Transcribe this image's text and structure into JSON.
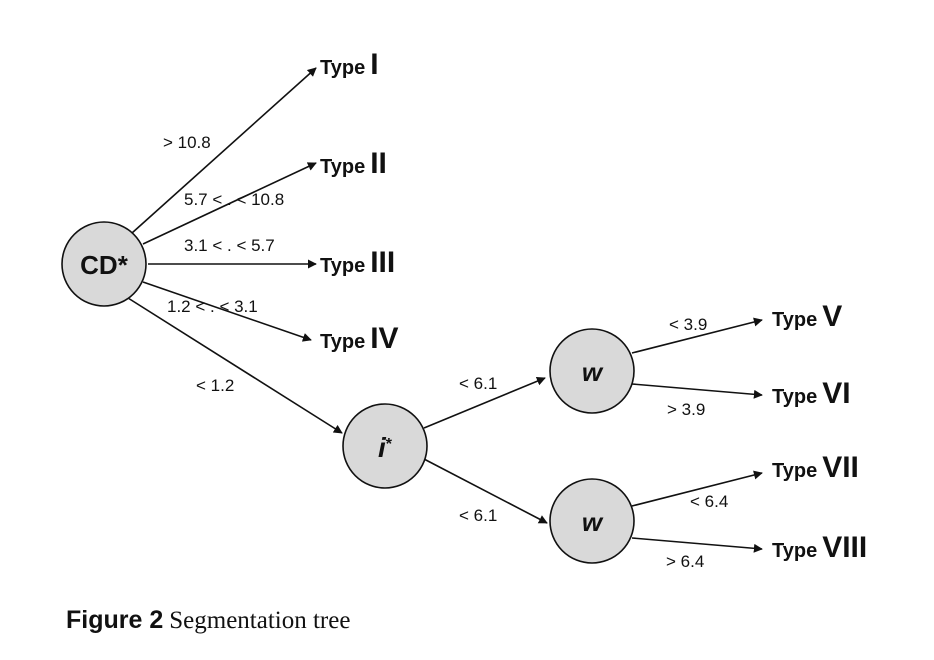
{
  "nodes": {
    "cd": "CD*",
    "i": "i",
    "i_sup": "*",
    "w_upper": "w",
    "w_lower": "w"
  },
  "edges": {
    "cd_to_type1": "> 10.8",
    "cd_to_type2": "5.7 < . < 10.8",
    "cd_to_type3": "3.1 < . < 5.7",
    "cd_to_type4": "1.2 < . < 3.1",
    "cd_to_i": "< 1.2",
    "i_to_w_upper": "< 6.1",
    "i_to_w_lower": "< 6.1",
    "w_upper_to_type5": "< 3.9",
    "w_upper_to_type6": "> 3.9",
    "w_lower_to_type7": "< 6.4",
    "w_lower_to_type8": "> 6.4"
  },
  "leaves": {
    "type_word": "Type",
    "type1": "I",
    "type2": "II",
    "type3": "III",
    "type4": "IV",
    "type5": "V",
    "type6": "VI",
    "type7": "VII",
    "type8": "VIII"
  },
  "caption": {
    "label": "Figure 2",
    "text": "Segmentation tree"
  }
}
